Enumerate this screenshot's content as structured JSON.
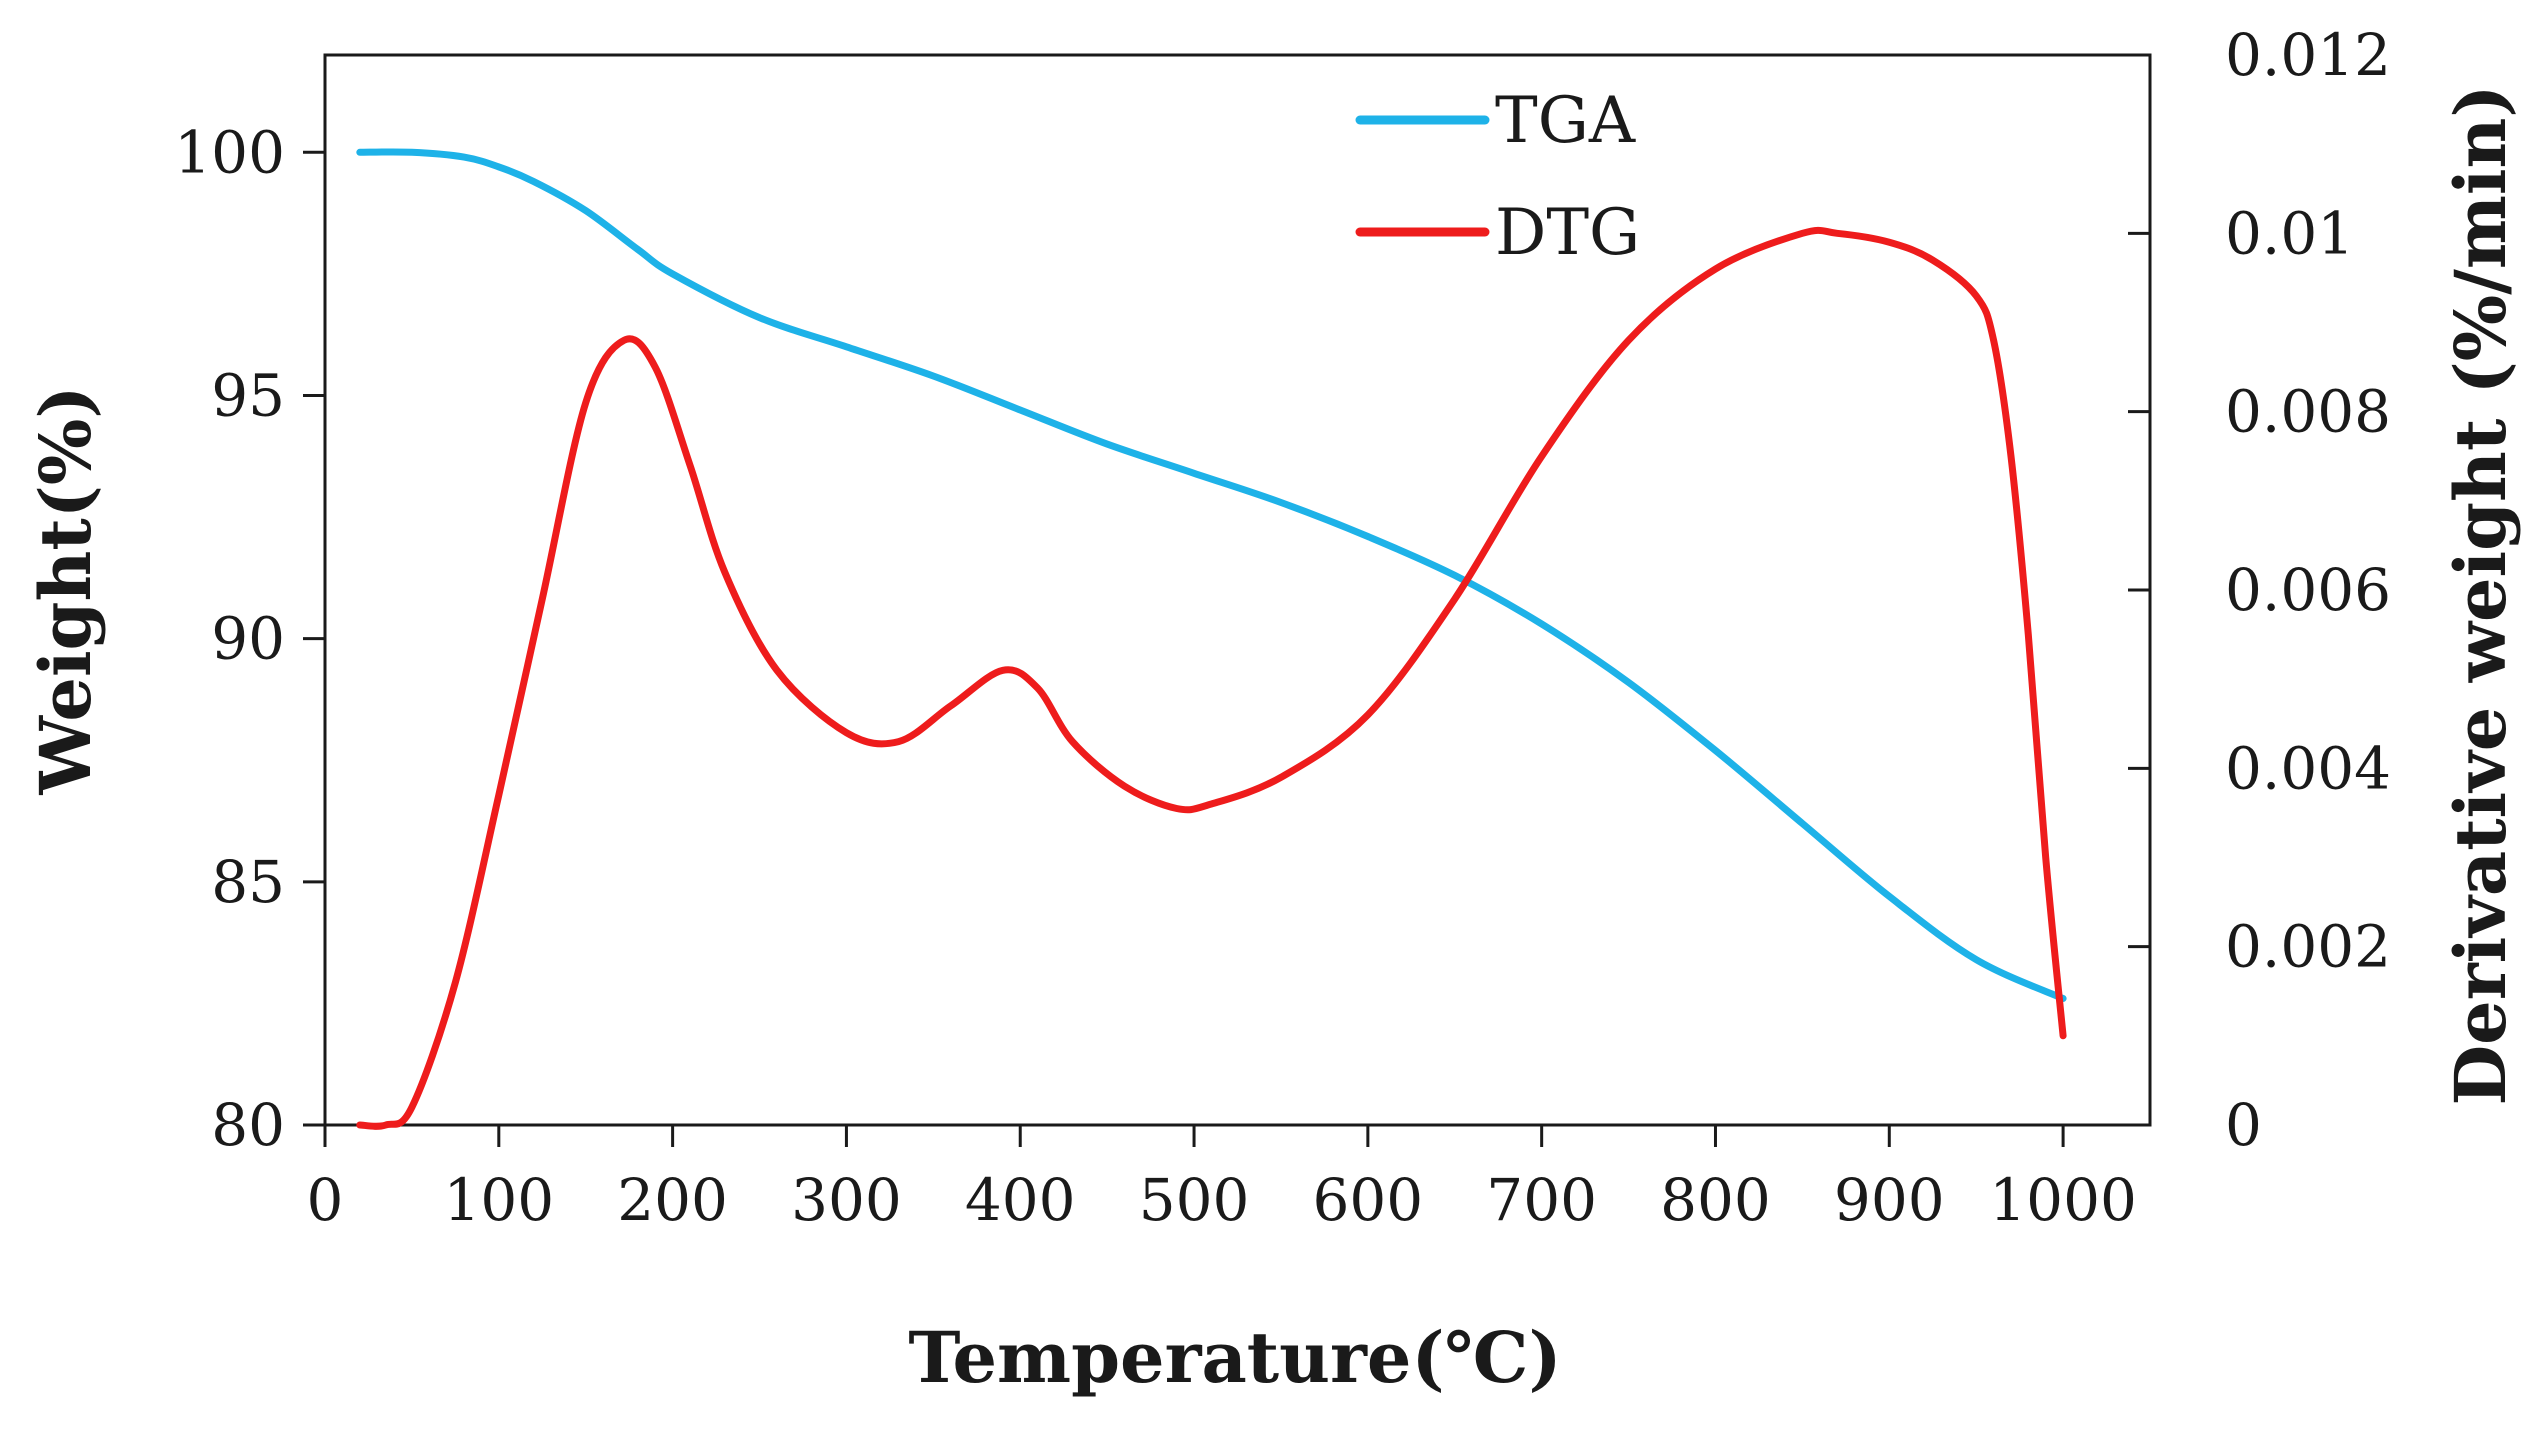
{
  "chart_data": {
    "type": "line",
    "title": "",
    "xlabel": "Temperature(℃)",
    "ylabel": "Weight(%)",
    "y2label": "Derivative weight (%/min)",
    "xlim": [
      0,
      1050
    ],
    "ylim": [
      80,
      102
    ],
    "y2lim": [
      0,
      0.012
    ],
    "xticks": [
      0,
      100,
      200,
      300,
      400,
      500,
      600,
      700,
      800,
      900,
      1000
    ],
    "yticks": [
      80,
      85,
      90,
      95,
      100
    ],
    "y2ticks": [
      0,
      0.002,
      0.004,
      0.006,
      0.008,
      0.01,
      0.012
    ],
    "xtick_labels": [
      "0",
      "100",
      "200",
      "300",
      "400",
      "500",
      "600",
      "700",
      "800",
      "900",
      "1000"
    ],
    "ytick_labels": [
      "80",
      "85",
      "90",
      "95",
      "100"
    ],
    "y2tick_labels": [
      "0",
      "0.002",
      "0.004",
      "0.006",
      "0.008",
      "0.01",
      "0.012"
    ],
    "grid": false,
    "legend_position": "top-center",
    "series": [
      {
        "name": "TGA",
        "axis": "left",
        "color": "#1eb2e8",
        "x": [
          20,
          50,
          80,
          100,
          120,
          150,
          180,
          200,
          250,
          300,
          350,
          400,
          450,
          500,
          550,
          600,
          650,
          700,
          750,
          800,
          850,
          900,
          950,
          1000
        ],
        "y": [
          100.0,
          100.0,
          99.9,
          99.7,
          99.4,
          98.8,
          98.0,
          97.5,
          96.6,
          96.0,
          95.4,
          94.7,
          94.0,
          93.4,
          92.8,
          92.1,
          91.3,
          90.3,
          89.1,
          87.7,
          86.2,
          84.7,
          83.4,
          82.6
        ]
      },
      {
        "name": "DTG",
        "axis": "right",
        "color": "#ee1c1c",
        "x": [
          20,
          35,
          50,
          75,
          100,
          125,
          150,
          172,
          190,
          210,
          230,
          260,
          300,
          330,
          360,
          390,
          410,
          430,
          460,
          490,
          510,
          550,
          600,
          650,
          700,
          750,
          800,
          850,
          870,
          900,
          925,
          950,
          960,
          970,
          980,
          990,
          1000
        ],
        "y": [
          0.0,
          0.0,
          0.0002,
          0.0016,
          0.0037,
          0.0059,
          0.0081,
          0.0088,
          0.0085,
          0.0074,
          0.0062,
          0.0051,
          0.0044,
          0.0043,
          0.0047,
          0.0051,
          0.0049,
          0.0043,
          0.0038,
          0.00355,
          0.0036,
          0.0039,
          0.0046,
          0.0059,
          0.0075,
          0.0088,
          0.0096,
          0.01,
          0.01,
          0.0099,
          0.0097,
          0.0093,
          0.0088,
          0.0075,
          0.0055,
          0.003,
          0.001
        ]
      }
    ]
  }
}
